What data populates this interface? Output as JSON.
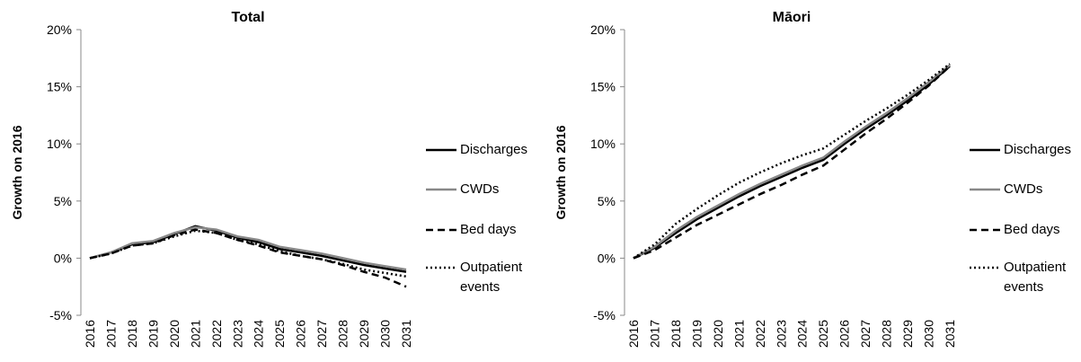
{
  "chart_data": [
    {
      "type": "line",
      "title": "Total",
      "y_label": "Growth on 2016",
      "legend": "right",
      "categories": [
        "2016",
        "2017",
        "2018",
        "2019",
        "2020",
        "2021",
        "2022",
        "2023",
        "2024",
        "2025",
        "2026",
        "2027",
        "2028",
        "2029",
        "2030",
        "2031"
      ],
      "ylim": [
        -5,
        20
      ],
      "yticks": [
        {
          "value": -5,
          "label": "-5%"
        },
        {
          "value": 0,
          "label": "0%"
        },
        {
          "value": 5,
          "label": "5%"
        },
        {
          "value": 10,
          "label": "10%"
        },
        {
          "value": 15,
          "label": "15%"
        },
        {
          "value": 20,
          "label": "20%"
        }
      ],
      "series": [
        {
          "name": "Discharges",
          "color": "#000000",
          "dash": "solid",
          "values": [
            0,
            0.5,
            1.2,
            1.4,
            2.1,
            2.8,
            2.4,
            1.8,
            1.4,
            0.8,
            0.5,
            0.2,
            -0.2,
            -0.6,
            -0.9,
            -1.2
          ]
        },
        {
          "name": "CWDs",
          "color": "#888888",
          "dash": "solid",
          "values": [
            0,
            0.5,
            1.3,
            1.5,
            2.2,
            2.7,
            2.5,
            1.9,
            1.6,
            1.0,
            0.7,
            0.4,
            0.0,
            -0.4,
            -0.7,
            -1.0
          ]
        },
        {
          "name": "Bed days",
          "color": "#000000",
          "dash": "dashed",
          "values": [
            0,
            0.4,
            1.1,
            1.3,
            2.0,
            2.5,
            2.2,
            1.6,
            1.1,
            0.5,
            0.2,
            -0.1,
            -0.6,
            -1.2,
            -1.7,
            -2.5
          ]
        },
        {
          "name": "Outpatient events",
          "color": "#000000",
          "dash": "dotted",
          "values": [
            0,
            0.4,
            1.1,
            1.3,
            1.9,
            2.4,
            2.2,
            1.6,
            1.2,
            0.6,
            0.2,
            -0.1,
            -0.5,
            -1.0,
            -1.3,
            -1.6
          ]
        }
      ]
    },
    {
      "type": "line",
      "title": "Māori",
      "y_label": "Growth on 2016",
      "legend": "right",
      "categories": [
        "2016",
        "2017",
        "2018",
        "2019",
        "2020",
        "2021",
        "2022",
        "2023",
        "2024",
        "2025",
        "2026",
        "2027",
        "2028",
        "2029",
        "2030",
        "2031"
      ],
      "ylim": [
        -5,
        20
      ],
      "yticks": [
        {
          "value": -5,
          "label": "-5%"
        },
        {
          "value": 0,
          "label": "0%"
        },
        {
          "value": 5,
          "label": "5%"
        },
        {
          "value": 10,
          "label": "10%"
        },
        {
          "value": 15,
          "label": "15%"
        },
        {
          "value": 20,
          "label": "20%"
        }
      ],
      "series": [
        {
          "name": "Discharges",
          "color": "#000000",
          "dash": "solid",
          "values": [
            0,
            0.9,
            2.2,
            3.4,
            4.4,
            5.4,
            6.3,
            7.1,
            7.9,
            8.6,
            10.0,
            11.3,
            12.5,
            13.8,
            15.2,
            16.8
          ]
        },
        {
          "name": "CWDs",
          "color": "#888888",
          "dash": "solid",
          "values": [
            0,
            1.0,
            2.4,
            3.6,
            4.6,
            5.6,
            6.5,
            7.3,
            8.1,
            8.8,
            10.2,
            11.5,
            12.7,
            14.0,
            15.4,
            16.9
          ]
        },
        {
          "name": "Bed days",
          "color": "#000000",
          "dash": "dashed",
          "values": [
            0,
            0.7,
            1.8,
            2.9,
            3.8,
            4.7,
            5.6,
            6.4,
            7.3,
            8.1,
            9.5,
            10.9,
            12.2,
            13.6,
            15.1,
            16.8
          ]
        },
        {
          "name": "Outpatient events",
          "color": "#000000",
          "dash": "dotted",
          "values": [
            0,
            1.2,
            3.0,
            4.3,
            5.5,
            6.6,
            7.5,
            8.3,
            9.0,
            9.6,
            10.8,
            12.0,
            13.1,
            14.3,
            15.6,
            17.0
          ]
        }
      ]
    }
  ]
}
